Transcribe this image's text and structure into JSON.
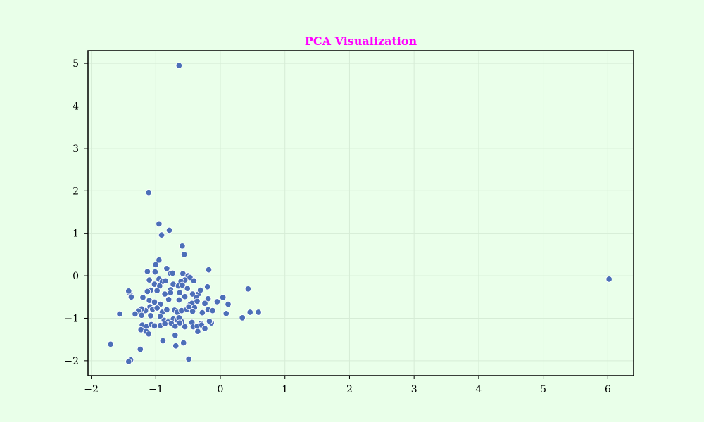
{
  "chart_data": {
    "type": "scatter",
    "title": "PCA Visualization",
    "xlabel": "",
    "ylabel": "",
    "xlim": [
      -2.05,
      6.4
    ],
    "ylim": [
      -2.35,
      5.3
    ],
    "x_ticks": [
      -2,
      -1,
      0,
      1,
      2,
      3,
      4,
      5,
      6
    ],
    "y_ticks": [
      -2,
      -1,
      0,
      1,
      2,
      3,
      4,
      5
    ],
    "x_tick_labels": [
      "−2",
      "−1",
      "0",
      "1",
      "2",
      "3",
      "4",
      "5",
      "6"
    ],
    "y_tick_labels": [
      "−2",
      "−1",
      "0",
      "1",
      "2",
      "3",
      "4",
      "5"
    ],
    "grid": true,
    "colors": {
      "page_background": "#e9ffe9",
      "plot_background": "#eaffea",
      "grid": "#d6ecd6",
      "points": "#4c6fb8",
      "point_edge": "#ffffff",
      "title": "#ff00ff",
      "axes": "#000000"
    },
    "series": [
      {
        "points": [
          [
            -0.64,
            4.95
          ],
          [
            6.02,
            -0.08
          ],
          [
            -1.11,
            1.96
          ],
          [
            -0.95,
            1.22
          ],
          [
            -0.91,
            0.96
          ],
          [
            -0.79,
            1.07
          ],
          [
            -0.59,
            0.7
          ],
          [
            -0.56,
            0.5
          ],
          [
            -0.95,
            0.37
          ],
          [
            -1.0,
            0.26
          ],
          [
            -1.13,
            0.1
          ],
          [
            -1.01,
            0.09
          ],
          [
            -0.83,
            0.17
          ],
          [
            -0.77,
            0.05
          ],
          [
            -0.74,
            0.06
          ],
          [
            -0.58,
            0.05
          ],
          [
            -0.18,
            0.14
          ],
          [
            -0.5,
            0.0
          ],
          [
            -0.47,
            -0.04
          ],
          [
            -0.55,
            -0.1
          ],
          [
            -0.61,
            -0.13
          ],
          [
            -0.41,
            -0.12
          ],
          [
            -0.95,
            -0.08
          ],
          [
            -0.9,
            -0.14
          ],
          [
            -0.85,
            -0.12
          ],
          [
            -1.1,
            -0.1
          ],
          [
            -1.02,
            -0.2
          ],
          [
            -0.94,
            -0.24
          ],
          [
            -0.73,
            -0.2
          ],
          [
            -0.65,
            -0.24
          ],
          [
            -0.59,
            -0.22
          ],
          [
            -0.51,
            -0.3
          ],
          [
            -0.77,
            -0.33
          ],
          [
            -0.2,
            -0.26
          ],
          [
            -1.08,
            -0.34
          ],
          [
            -1.13,
            -0.37
          ],
          [
            -0.98,
            -0.35
          ],
          [
            -1.4,
            -0.42
          ],
          [
            -1.42,
            -0.36
          ],
          [
            -1.38,
            -0.5
          ],
          [
            -0.86,
            -0.43
          ],
          [
            -0.77,
            -0.4
          ],
          [
            -0.63,
            -0.4
          ],
          [
            -0.55,
            -0.49
          ],
          [
            -0.43,
            -0.43
          ],
          [
            -0.34,
            -0.43
          ],
          [
            -0.31,
            -0.34
          ],
          [
            -0.37,
            -0.51
          ],
          [
            -0.19,
            -0.54
          ],
          [
            0.04,
            -0.51
          ],
          [
            0.43,
            -0.31
          ],
          [
            -1.2,
            -0.51
          ],
          [
            -1.1,
            -0.58
          ],
          [
            -1.02,
            -0.62
          ],
          [
            -0.93,
            -0.67
          ],
          [
            -0.8,
            -0.56
          ],
          [
            -0.64,
            -0.57
          ],
          [
            -0.47,
            -0.68
          ],
          [
            -0.44,
            -0.65
          ],
          [
            -0.36,
            -0.6
          ],
          [
            -0.24,
            -0.65
          ],
          [
            -0.05,
            -0.61
          ],
          [
            0.12,
            -0.67
          ],
          [
            -1.09,
            -0.73
          ],
          [
            -1.05,
            -0.79
          ],
          [
            -0.98,
            -0.76
          ],
          [
            -1.16,
            -0.82
          ],
          [
            -1.22,
            -0.78
          ],
          [
            -1.27,
            -0.83
          ],
          [
            -1.32,
            -0.9
          ],
          [
            -1.56,
            -0.9
          ],
          [
            -0.9,
            -0.86
          ],
          [
            -0.83,
            -0.8
          ],
          [
            -0.71,
            -0.81
          ],
          [
            -0.67,
            -0.86
          ],
          [
            -0.6,
            -0.82
          ],
          [
            -0.52,
            -0.79
          ],
          [
            -0.49,
            -0.73
          ],
          [
            -0.4,
            -0.75
          ],
          [
            -0.43,
            -0.84
          ],
          [
            -0.28,
            -0.87
          ],
          [
            -0.19,
            -0.8
          ],
          [
            -0.12,
            -0.82
          ],
          [
            0.09,
            -0.89
          ],
          [
            0.46,
            -0.86
          ],
          [
            0.59,
            -0.86
          ],
          [
            0.34,
            -0.99
          ],
          [
            -1.22,
            -0.93
          ],
          [
            -1.08,
            -0.94
          ],
          [
            -0.93,
            -0.96
          ],
          [
            -0.87,
            -1.05
          ],
          [
            -0.81,
            -1.09
          ],
          [
            -0.73,
            -1.02
          ],
          [
            -0.67,
            -1.04
          ],
          [
            -0.6,
            -1.08
          ],
          [
            -0.64,
            -0.99
          ],
          [
            -0.44,
            -1.1
          ],
          [
            -0.3,
            -1.12
          ],
          [
            -0.14,
            -1.11
          ],
          [
            -0.17,
            -1.07
          ],
          [
            -1.21,
            -1.16
          ],
          [
            -1.14,
            -1.19
          ],
          [
            -1.07,
            -1.15
          ],
          [
            -1.02,
            -1.18
          ],
          [
            -0.93,
            -1.17
          ],
          [
            -0.86,
            -1.13
          ],
          [
            -0.76,
            -1.12
          ],
          [
            -0.7,
            -1.19
          ],
          [
            -0.63,
            -1.11
          ],
          [
            -0.55,
            -1.2
          ],
          [
            -0.42,
            -1.2
          ],
          [
            -0.36,
            -1.19
          ],
          [
            -0.29,
            -1.16
          ],
          [
            -0.24,
            -1.24
          ],
          [
            -1.23,
            -1.27
          ],
          [
            -1.15,
            -1.31
          ],
          [
            -1.11,
            -1.37
          ],
          [
            -0.35,
            -1.31
          ],
          [
            -0.7,
            -1.4
          ],
          [
            -0.89,
            -1.53
          ],
          [
            -0.57,
            -1.58
          ],
          [
            -0.69,
            -1.65
          ],
          [
            -1.7,
            -1.61
          ],
          [
            -1.24,
            -1.73
          ],
          [
            -0.49,
            -1.96
          ],
          [
            -1.39,
            -1.98
          ],
          [
            -1.42,
            -2.02
          ]
        ]
      }
    ]
  }
}
